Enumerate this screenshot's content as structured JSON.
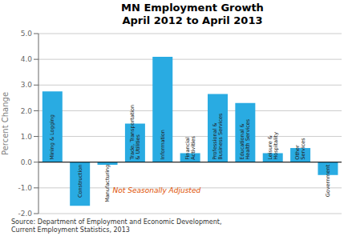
{
  "chart_data": {
    "type": "bar",
    "title": "MN Employment Growth\nApril 2012 to April 2013",
    "ylabel": "Percent Change",
    "categories": [
      "Mining & Logging",
      "Construction",
      "Manufacturing",
      "Trade, Transportation\n& Utilities",
      "Information",
      "Financial\nActivities",
      "Professional &\nBusiness Services",
      "Educational &\nHealth Services",
      "Leisure &\nHospitality",
      "Other\nServices",
      "Government"
    ],
    "values": [
      2.75,
      -1.7,
      -0.1,
      1.5,
      4.1,
      0.35,
      2.65,
      2.3,
      0.35,
      0.55,
      -0.5
    ],
    "color": "#29ABE2",
    "ylim": [
      -2.0,
      5.0
    ],
    "yticks": [
      {
        "value": -2.0,
        "label": "-2.0"
      },
      {
        "value": -1.0,
        "label": "-1.0"
      },
      {
        "value": 0.0,
        "label": "0.0"
      },
      {
        "value": 1.0,
        "label": "1.0"
      },
      {
        "value": 2.0,
        "label": "2.0"
      },
      {
        "value": 3.0,
        "label": "3.0"
      },
      {
        "value": 4.0,
        "label": "4.0"
      },
      {
        "value": 5.0,
        "label": "5.0"
      }
    ],
    "grid": true,
    "annotations": [
      {
        "text": "Not Seasonally Adjusted",
        "color": "#E05000"
      }
    ],
    "source": "Source: Department of Employment and Economic Development,\nCurrent Employment Statistics, 2013"
  }
}
